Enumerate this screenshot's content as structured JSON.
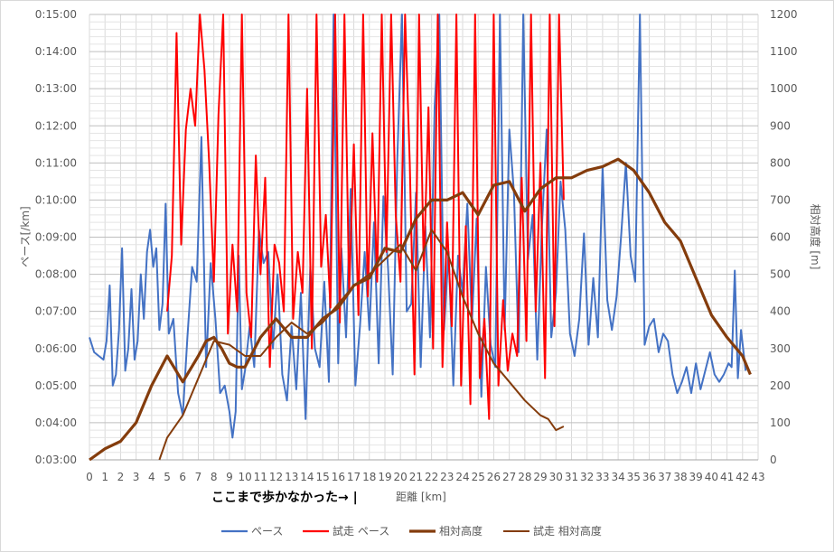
{
  "chart_data": {
    "type": "line",
    "title": "",
    "xlabel": "距離 [km]",
    "ylabel_left": "ペース[/km]",
    "ylabel_right": "相対高度 [m]",
    "annotation": "ここまで歩かなかった→ |",
    "xlim": [
      0,
      43
    ],
    "x_ticks": [
      "0",
      "1",
      "2",
      "3",
      "4",
      "5",
      "6",
      "7",
      "8",
      "9",
      "10",
      "11",
      "12",
      "13",
      "14",
      "15",
      "16",
      "17",
      "18",
      "19",
      "20",
      "21",
      "22",
      "23",
      "24",
      "25",
      "26",
      "27",
      "28",
      "29",
      "30",
      "31",
      "32",
      "33",
      "34",
      "35",
      "36",
      "37",
      "38",
      "39",
      "40",
      "41",
      "42",
      "43"
    ],
    "ylim_left_minutes": [
      3,
      15
    ],
    "y_ticks_left": [
      "0:03:00",
      "0:04:00",
      "0:05:00",
      "0:06:00",
      "0:07:00",
      "0:08:00",
      "0:09:00",
      "0:10:00",
      "0:11:00",
      "0:12:00",
      "0:13:00",
      "0:14:00",
      "0:15:00"
    ],
    "ylim_right": [
      0,
      1200
    ],
    "y_ticks_right": [
      "0",
      "100",
      "200",
      "300",
      "400",
      "500",
      "600",
      "700",
      "800",
      "900",
      "1000",
      "1100",
      "1200"
    ],
    "grid": true,
    "legend_position": "bottom",
    "legend": [
      "ペース",
      "試走 ペース",
      "相対高度",
      "試走 相対高度"
    ],
    "series": [
      {
        "name": "ペース",
        "axis": "left",
        "unit": "min/km",
        "color": "#4472c4",
        "x": [
          0,
          0.3,
          0.6,
          0.9,
          1.1,
          1.3,
          1.5,
          1.7,
          1.9,
          2.1,
          2.3,
          2.5,
          2.7,
          2.9,
          3.1,
          3.3,
          3.5,
          3.7,
          3.9,
          4.1,
          4.3,
          4.5,
          4.7,
          4.9,
          5.1,
          5.4,
          5.7,
          6.0,
          6.3,
          6.6,
          6.9,
          7.2,
          7.5,
          7.8,
          8.1,
          8.4,
          8.7,
          9.0,
          9.2,
          9.4,
          9.6,
          9.8,
          10.0,
          10.3,
          10.6,
          10.9,
          11.2,
          11.5,
          11.8,
          12.1,
          12.4,
          12.7,
          13.0,
          13.3,
          13.6,
          13.9,
          14.2,
          14.5,
          14.8,
          15.1,
          15.4,
          15.7,
          16.0,
          16.2,
          16.5,
          16.8,
          17.1,
          17.4,
          17.7,
          18.0,
          18.3,
          18.6,
          18.9,
          19.2,
          19.5,
          19.8,
          20.1,
          20.4,
          20.7,
          21.0,
          21.3,
          21.6,
          21.9,
          22.2,
          22.5,
          22.8,
          23.1,
          23.4,
          23.7,
          24.0,
          24.3,
          24.6,
          24.9,
          25.2,
          25.5,
          25.8,
          26.1,
          26.4,
          26.7,
          27.0,
          27.3,
          27.6,
          27.9,
          28.2,
          28.5,
          28.8,
          29.1,
          29.4,
          29.7,
          30.0,
          30.3,
          30.6,
          30.9,
          31.2,
          31.5,
          31.8,
          32.1,
          32.4,
          32.7,
          33.0,
          33.3,
          33.6,
          33.9,
          34.2,
          34.5,
          34.8,
          35.1,
          35.4,
          35.7,
          36.0,
          36.3,
          36.6,
          36.9,
          37.2,
          37.5,
          37.8,
          38.1,
          38.4,
          38.7,
          39.0,
          39.3,
          39.6,
          39.9,
          40.2,
          40.5,
          40.8,
          41.1,
          41.3,
          41.5,
          41.7,
          41.9,
          42.2
        ],
        "y": [
          6.3,
          5.9,
          5.8,
          5.7,
          6.2,
          7.7,
          5.0,
          5.3,
          6.5,
          8.7,
          5.4,
          6.0,
          7.6,
          5.7,
          6.2,
          8.0,
          6.8,
          8.6,
          9.2,
          8.2,
          8.7,
          6.5,
          7.2,
          9.9,
          6.4,
          6.8,
          4.8,
          4.2,
          6.3,
          8.2,
          7.8,
          11.7,
          5.5,
          8.3,
          6.8,
          4.8,
          5.0,
          4.3,
          3.6,
          4.3,
          8.5,
          4.9,
          5.4,
          6.6,
          5.5,
          9.2,
          8.3,
          8.6,
          6.0,
          8.0,
          5.3,
          4.6,
          6.6,
          4.9,
          7.5,
          4.1,
          8.2,
          6.0,
          5.5,
          7.8,
          5.1,
          15,
          5.6,
          8.7,
          6.3,
          10.3,
          5.0,
          6.6,
          8.6,
          6.5,
          9.4,
          5.6,
          10.1,
          8.2,
          5.3,
          11.1,
          15,
          7.0,
          7.2,
          10.2,
          5.5,
          9.3,
          6.3,
          12.5,
          15,
          6.5,
          8.6,
          5.0,
          8.5,
          7.5,
          9.9,
          6.7,
          9.5,
          4.7,
          8.2,
          6.1,
          5.5,
          15,
          6.5,
          11.9,
          10.2,
          5.9,
          15,
          8.4,
          9.6,
          5.7,
          9.3,
          11.9,
          6.3,
          7.5,
          10.5,
          9.2,
          6.4,
          5.8,
          6.8,
          9.1,
          6.1,
          7.9,
          6.3,
          10.9,
          7.3,
          6.5,
          7.4,
          9.1,
          11.0,
          8.5,
          7.8,
          15,
          6.1,
          6.6,
          6.8,
          5.9,
          6.4,
          6.2,
          5.3,
          4.8,
          5.1,
          5.5,
          4.8,
          5.6,
          4.9,
          5.4,
          5.9,
          5.3,
          5.1,
          5.3,
          5.6,
          5.5,
          8.1,
          5.2,
          6.5,
          5.4
        ]
      },
      {
        "name": "試走 ペース",
        "axis": "left",
        "unit": "min/km",
        "color": "#ff0000",
        "x": [
          5.0,
          5.3,
          5.6,
          5.9,
          6.2,
          6.5,
          6.8,
          7.1,
          7.4,
          7.7,
          8.0,
          8.3,
          8.6,
          8.9,
          9.2,
          9.5,
          9.8,
          10.1,
          10.4,
          10.7,
          11.0,
          11.3,
          11.6,
          11.9,
          12.2,
          12.5,
          12.8,
          13.1,
          13.4,
          13.7,
          14.0,
          14.3,
          14.6,
          14.9,
          15.2,
          15.5,
          15.8,
          16.1,
          16.4,
          16.7,
          17.0,
          17.3,
          17.6,
          17.9,
          18.2,
          18.5,
          18.8,
          19.1,
          19.4,
          19.7,
          20.0,
          20.3,
          20.6,
          20.9,
          21.2,
          21.5,
          21.8,
          22.1,
          22.4,
          22.7,
          23.0,
          23.3,
          23.6,
          23.9,
          24.2,
          24.5,
          24.8,
          25.1,
          25.4,
          25.7,
          26.0,
          26.3,
          26.6,
          26.9,
          27.2,
          27.5,
          27.8,
          28.1,
          28.4,
          28.7,
          29.0,
          29.3,
          29.6,
          29.9,
          30.2,
          30.5
        ],
        "y": [
          7.0,
          8.5,
          14.5,
          8.8,
          11.9,
          13.0,
          12.0,
          15,
          13.5,
          11.0,
          7.8,
          12.3,
          15,
          6.4,
          8.8,
          7.0,
          15,
          7.5,
          6.3,
          11.2,
          8.0,
          10.6,
          5.5,
          8.8,
          8.3,
          7.0,
          15,
          6.8,
          8.6,
          7.5,
          13.0,
          6.0,
          15,
          8.2,
          9.6,
          7.1,
          15,
          6.7,
          15,
          7.5,
          11.5,
          6.9,
          15,
          7.4,
          11.8,
          7.8,
          15,
          8.6,
          15,
          9.6,
          7.8,
          15,
          11.0,
          5.3,
          15,
          8.1,
          12.5,
          6.0,
          15,
          5.5,
          9.4,
          6.6,
          15,
          5.0,
          9.3,
          4.5,
          15,
          5.2,
          6.8,
          4.1,
          15,
          5.0,
          7.3,
          5.4,
          6.4,
          5.8,
          10.6,
          6.2,
          15,
          7.0,
          11.0,
          5.2,
          15,
          6.6,
          15,
          10.0
        ]
      },
      {
        "name": "相対高度",
        "axis": "right",
        "unit": "m",
        "color": "#843c0c",
        "x": [
          0,
          1,
          2,
          3,
          4,
          5,
          6,
          7,
          7.5,
          8,
          8.5,
          9,
          9.5,
          10,
          11,
          12,
          13,
          14,
          15,
          16,
          17,
          18,
          19,
          20,
          21,
          22,
          23,
          24,
          25,
          26,
          27,
          28,
          29,
          30,
          31,
          32,
          33,
          34,
          35,
          36,
          37,
          38,
          39,
          40,
          41,
          42,
          42.5
        ],
        "y": [
          0,
          30,
          50,
          100,
          200,
          280,
          210,
          280,
          320,
          330,
          300,
          260,
          250,
          250,
          330,
          380,
          330,
          330,
          380,
          410,
          470,
          490,
          570,
          560,
          650,
          700,
          700,
          720,
          660,
          740,
          750,
          670,
          730,
          760,
          760,
          780,
          790,
          810,
          780,
          720,
          640,
          590,
          490,
          390,
          330,
          280,
          230
        ]
      },
      {
        "name": "試走 相対高度",
        "axis": "right",
        "unit": "m",
        "color": "#843c0c",
        "x": [
          4.5,
          5,
          6,
          7,
          8,
          9,
          10,
          11,
          12,
          13,
          14,
          15,
          16,
          17,
          18,
          19,
          20,
          21,
          22,
          23,
          24,
          25,
          26,
          27,
          28,
          29,
          29.5,
          30,
          30.5
        ],
        "y": [
          0,
          60,
          120,
          220,
          320,
          310,
          280,
          280,
          330,
          370,
          340,
          370,
          420,
          470,
          500,
          540,
          580,
          510,
          620,
          560,
          440,
          340,
          260,
          210,
          160,
          120,
          110,
          80,
          90
        ]
      }
    ]
  }
}
